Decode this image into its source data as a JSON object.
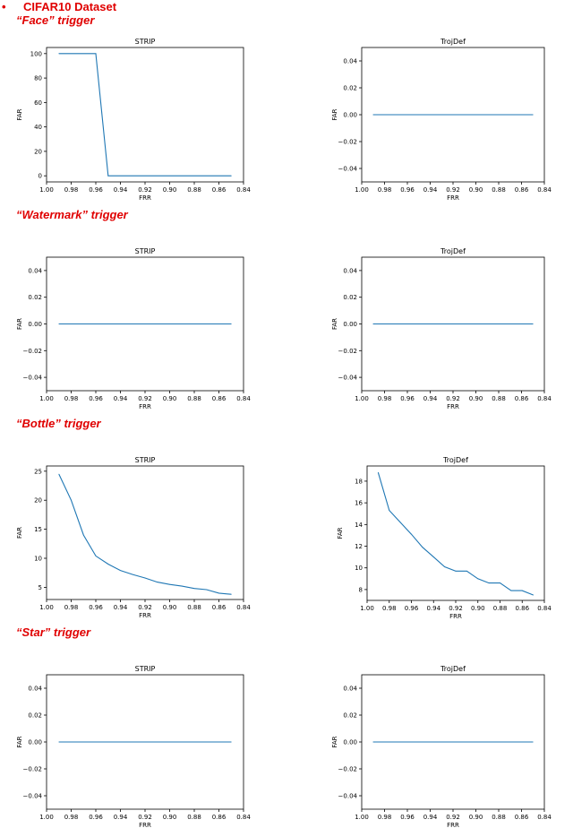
{
  "heading": {
    "bullet": "•",
    "text": "CIFAR10 Dataset"
  },
  "colors": {
    "accent": "#e00000",
    "line": "#1f77b4"
  },
  "triggers": [
    {
      "label": "“Face” trigger"
    },
    {
      "label": "“Watermark” trigger"
    },
    {
      "label": "“Bottle” trigger"
    },
    {
      "label": "“Star” trigger"
    }
  ],
  "chart_data": [
    {
      "group": "Face",
      "type": "line",
      "title": "STRIP",
      "xlabel": "FRR",
      "ylabel": "FAR",
      "xlim": [
        1.0,
        0.84
      ],
      "ylim": [
        -5,
        105
      ],
      "xticks": [
        1.0,
        0.98,
        0.96,
        0.94,
        0.92,
        0.9,
        0.88,
        0.86,
        0.84
      ],
      "xtick_labels": [
        "1.00",
        "0.98",
        "0.96",
        "0.94",
        "0.92",
        "0.90",
        "0.88",
        "0.86",
        "0.84"
      ],
      "yticks": [
        0,
        20,
        40,
        60,
        80,
        100
      ],
      "ytick_labels": [
        "0",
        "20",
        "40",
        "60",
        "80",
        "100"
      ],
      "x": [
        0.99,
        0.96,
        0.95,
        0.85
      ],
      "y": [
        100,
        100,
        0,
        0
      ]
    },
    {
      "group": "Face",
      "type": "line",
      "title": "TrojDef",
      "xlabel": "FRR",
      "ylabel": "FAR",
      "xlim": [
        1.0,
        0.84
      ],
      "ylim": [
        -0.05,
        0.05
      ],
      "xticks": [
        1.0,
        0.98,
        0.96,
        0.94,
        0.92,
        0.9,
        0.88,
        0.86,
        0.84
      ],
      "xtick_labels": [
        "1.00",
        "0.98",
        "0.96",
        "0.94",
        "0.92",
        "0.90",
        "0.88",
        "0.86",
        "0.84"
      ],
      "yticks": [
        -0.04,
        -0.02,
        0.0,
        0.02,
        0.04
      ],
      "ytick_labels": [
        "−0.04",
        "−0.02",
        "0.00",
        "0.02",
        "0.04"
      ],
      "x": [
        0.99,
        0.85
      ],
      "y": [
        0,
        0
      ]
    },
    {
      "group": "Watermark",
      "type": "line",
      "title": "STRIP",
      "xlabel": "FRR",
      "ylabel": "FAR",
      "xlim": [
        1.0,
        0.84
      ],
      "ylim": [
        -0.05,
        0.05
      ],
      "xticks": [
        1.0,
        0.98,
        0.96,
        0.94,
        0.92,
        0.9,
        0.88,
        0.86,
        0.84
      ],
      "xtick_labels": [
        "1.00",
        "0.98",
        "0.96",
        "0.94",
        "0.92",
        "0.90",
        "0.88",
        "0.86",
        "0.84"
      ],
      "yticks": [
        -0.04,
        -0.02,
        0.0,
        0.02,
        0.04
      ],
      "ytick_labels": [
        "−0.04",
        "−0.02",
        "0.00",
        "0.02",
        "0.04"
      ],
      "x": [
        0.99,
        0.85
      ],
      "y": [
        0,
        0
      ]
    },
    {
      "group": "Watermark",
      "type": "line",
      "title": "TrojDef",
      "xlabel": "FRR",
      "ylabel": "FAR",
      "xlim": [
        1.0,
        0.84
      ],
      "ylim": [
        -0.05,
        0.05
      ],
      "xticks": [
        1.0,
        0.98,
        0.96,
        0.94,
        0.92,
        0.9,
        0.88,
        0.86,
        0.84
      ],
      "xtick_labels": [
        "1.00",
        "0.98",
        "0.96",
        "0.94",
        "0.92",
        "0.90",
        "0.88",
        "0.86",
        "0.84"
      ],
      "yticks": [
        -0.04,
        -0.02,
        0.0,
        0.02,
        0.04
      ],
      "ytick_labels": [
        "−0.04",
        "−0.02",
        "0.00",
        "0.02",
        "0.04"
      ],
      "x": [
        0.99,
        0.85
      ],
      "y": [
        0,
        0
      ]
    },
    {
      "group": "Bottle",
      "type": "line",
      "title": "STRIP",
      "xlabel": "FRR",
      "ylabel": "FAR",
      "xlim": [
        1.0,
        0.84
      ],
      "ylim": [
        2.9,
        25.9
      ],
      "xticks": [
        1.0,
        0.98,
        0.96,
        0.94,
        0.92,
        0.9,
        0.88,
        0.86,
        0.84
      ],
      "xtick_labels": [
        "1.00",
        "0.98",
        "0.96",
        "0.94",
        "0.92",
        "0.90",
        "0.88",
        "0.86",
        "0.84"
      ],
      "yticks": [
        5,
        10,
        15,
        20,
        25
      ],
      "ytick_labels": [
        "5",
        "10",
        "15",
        "20",
        "25"
      ],
      "x": [
        0.99,
        0.98,
        0.97,
        0.96,
        0.95,
        0.94,
        0.93,
        0.92,
        0.91,
        0.9,
        0.89,
        0.88,
        0.87,
        0.86,
        0.85
      ],
      "y": [
        24.5,
        20.0,
        14.0,
        10.4,
        9.0,
        7.9,
        7.2,
        6.6,
        5.9,
        5.5,
        5.2,
        4.8,
        4.6,
        4.0,
        3.8
      ]
    },
    {
      "group": "Bottle",
      "type": "line",
      "title": "TrojDef",
      "xlabel": "FRR",
      "ylabel": "FAR",
      "xlim": [
        1.0,
        0.84
      ],
      "ylim": [
        7.0,
        19.4
      ],
      "xticks": [
        1.0,
        0.98,
        0.96,
        0.94,
        0.92,
        0.9,
        0.88,
        0.86,
        0.84
      ],
      "xtick_labels": [
        "1.00",
        "0.98",
        "0.96",
        "0.94",
        "0.92",
        "0.90",
        "0.88",
        "0.86",
        "0.84"
      ],
      "yticks": [
        8,
        10,
        12,
        14,
        16,
        18
      ],
      "ytick_labels": [
        "8",
        "10",
        "12",
        "14",
        "16",
        "18"
      ],
      "x": [
        0.99,
        0.98,
        0.97,
        0.96,
        0.95,
        0.94,
        0.93,
        0.92,
        0.91,
        0.9,
        0.89,
        0.88,
        0.87,
        0.86,
        0.85
      ],
      "y": [
        18.8,
        15.3,
        14.2,
        13.1,
        11.9,
        11.0,
        10.1,
        9.7,
        9.7,
        9.0,
        8.6,
        8.6,
        7.9,
        7.9,
        7.5
      ]
    },
    {
      "group": "Star",
      "type": "line",
      "title": "STRIP",
      "xlabel": "FRR",
      "ylabel": "FAR",
      "xlim": [
        1.0,
        0.84
      ],
      "ylim": [
        -0.05,
        0.05
      ],
      "xticks": [
        1.0,
        0.98,
        0.96,
        0.94,
        0.92,
        0.9,
        0.88,
        0.86,
        0.84
      ],
      "xtick_labels": [
        "1.00",
        "0.98",
        "0.96",
        "0.94",
        "0.92",
        "0.90",
        "0.88",
        "0.86",
        "0.84"
      ],
      "yticks": [
        -0.04,
        -0.02,
        0.0,
        0.02,
        0.04
      ],
      "ytick_labels": [
        "−0.04",
        "−0.02",
        "0.00",
        "0.02",
        "0.04"
      ],
      "x": [
        0.99,
        0.85
      ],
      "y": [
        0,
        0
      ]
    },
    {
      "group": "Star",
      "type": "line",
      "title": "TrojDef",
      "xlabel": "FRR",
      "ylabel": "FAR",
      "xlim": [
        1.0,
        0.84
      ],
      "ylim": [
        -0.05,
        0.05
      ],
      "xticks": [
        1.0,
        0.98,
        0.96,
        0.94,
        0.92,
        0.9,
        0.88,
        0.86,
        0.84
      ],
      "xtick_labels": [
        "1.00",
        "0.98",
        "0.96",
        "0.94",
        "0.92",
        "0.90",
        "0.88",
        "0.86",
        "0.84"
      ],
      "yticks": [
        -0.04,
        -0.02,
        0.0,
        0.02,
        0.04
      ],
      "ytick_labels": [
        "−0.04",
        "−0.02",
        "0.00",
        "0.02",
        "0.04"
      ],
      "x": [
        0.99,
        0.85
      ],
      "y": [
        0,
        0
      ]
    }
  ]
}
